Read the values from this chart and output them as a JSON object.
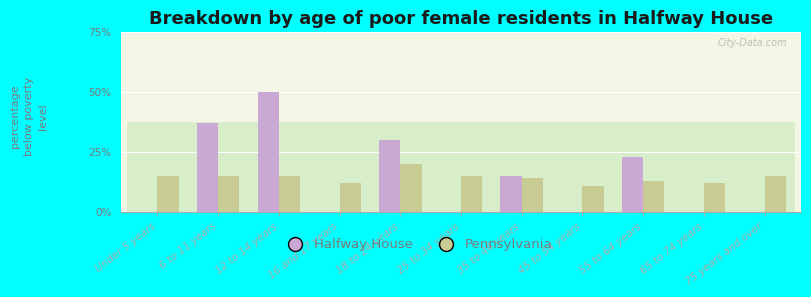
{
  "title": "Breakdown by age of poor female residents in Halfway House",
  "ylabel": "percentage\nbelow poverty\nlevel",
  "categories": [
    "Under 5 years",
    "6 to 11 years",
    "12 to 14 years",
    "16 and 17 years",
    "18 to 24 years",
    "25 to 34 years",
    "35 to 44 years",
    "45 to 54 years",
    "55 to 64 years",
    "65 to 74 years",
    "75 years and over"
  ],
  "halfway_house": [
    0,
    37,
    50,
    0,
    30,
    0,
    15,
    0,
    23,
    0,
    0
  ],
  "pennsylvania": [
    15,
    15,
    15,
    12,
    20,
    15,
    14,
    11,
    13,
    12,
    15
  ],
  "hh_color": "#c9a8d4",
  "pa_color": "#c8cc94",
  "background_color": "#00ffff",
  "plot_bg_top": "#f5f5e6",
  "plot_bg_bottom": "#d8edca",
  "ylim": [
    0,
    75
  ],
  "yticks": [
    0,
    25,
    50,
    75
  ],
  "ytick_labels": [
    "0%",
    "25%",
    "50%",
    "75%"
  ],
  "bar_width": 0.35,
  "title_fontsize": 13,
  "ylabel_fontsize": 8,
  "tick_fontsize": 7.5,
  "legend_fontsize": 9.5,
  "watermark": "City-Data.com",
  "ylabel_color": "#7a7a7a",
  "tick_color": "#7a7a7a",
  "title_color": "#1a1a1a"
}
